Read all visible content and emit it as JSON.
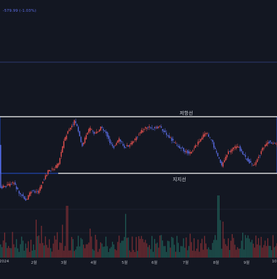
{
  "legend": {
    "text": "-579.99 (-1.03%)"
  },
  "levels": {
    "resistance_label": "저항선",
    "support_label": "지지선"
  },
  "x_axis": {
    "labels": [
      "2024",
      "2월",
      "3월",
      "4월",
      "5월",
      "6월",
      "7월",
      "8월",
      "9월",
      "10"
    ]
  },
  "colors": {
    "background": "#131722",
    "up": "#ef5350",
    "down": "#5b6ee8",
    "level_line": "#ffffff",
    "level_box": "#2962ff",
    "vol_up": "#7a2d33",
    "vol_down": "#1f5c55"
  }
}
